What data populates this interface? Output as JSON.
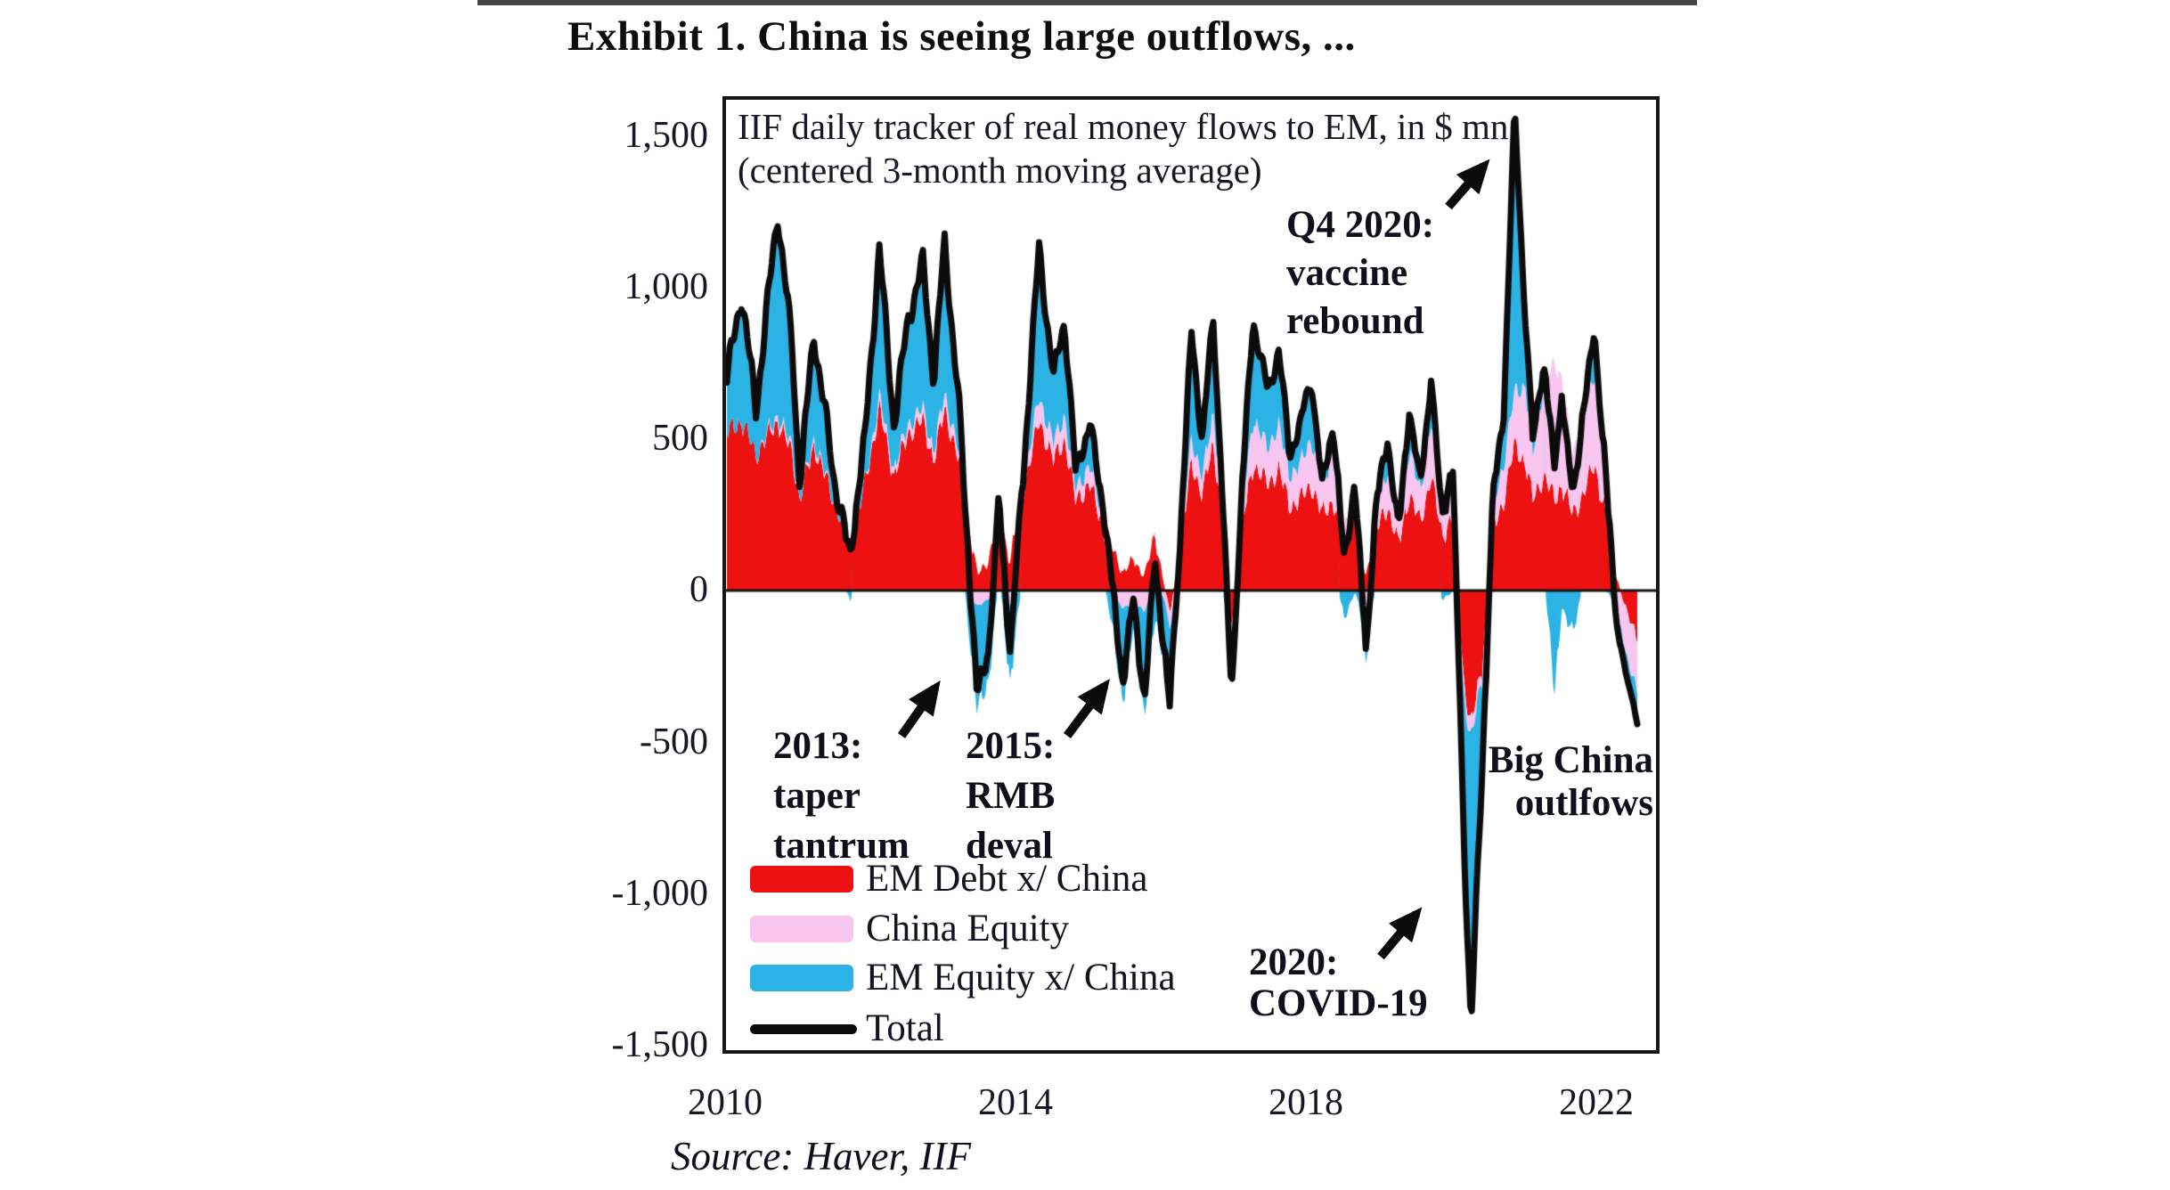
{
  "page": {
    "top_bar_color": "#454545",
    "background": "#ffffff",
    "frame_color": "#161616"
  },
  "title": "Exhibit 1. China is seeing large outflows, ...",
  "chart": {
    "note_line1": "IIF daily tracker of real money flows to EM, in $ mn",
    "note_line2": "(centered 3-month moving average)",
    "y_ticks": [
      "1,500",
      "1,000",
      "500",
      "0",
      "-500",
      "-1,000",
      "-1,500"
    ],
    "x_ticks": [
      "2010",
      "2014",
      "2018",
      "2022"
    ],
    "annotations": {
      "taper": {
        "lines": [
          "2013:",
          "taper",
          "tantrum"
        ]
      },
      "rmb": {
        "lines": [
          "2015:",
          "RMB",
          "deval"
        ]
      },
      "vaccine": {
        "lines": [
          "Q4 2020:",
          "vaccine",
          "rebound"
        ]
      },
      "covid": {
        "lines": [
          "2020:",
          "COVID-19"
        ]
      },
      "bigchina": {
        "lines": [
          "Big China",
          "outlfows"
        ]
      }
    }
  },
  "source": "Source: Haver, IIF",
  "chart_data": {
    "type": "area",
    "stacked": true,
    "title": "IIF daily tracker of real money flows to EM, in $ mn (centered 3-month moving average)",
    "ylabel": "$ mn",
    "ylim": [
      -1500,
      1620
    ],
    "xlim": [
      2010,
      2022.85
    ],
    "grid": false,
    "legend_position": "inside-bottom-left",
    "x": [
      2010.0,
      2010.2,
      2010.4,
      2010.7,
      2010.9,
      2011.0,
      2011.2,
      2011.5,
      2011.7,
      2011.9,
      2012.1,
      2012.3,
      2012.5,
      2012.7,
      2012.85,
      2013.0,
      2013.2,
      2013.45,
      2013.6,
      2013.75,
      2013.9,
      2014.1,
      2014.3,
      2014.5,
      2014.65,
      2014.8,
      2015.0,
      2015.2,
      2015.45,
      2015.6,
      2015.75,
      2015.9,
      2016.1,
      2016.25,
      2016.4,
      2016.55,
      2016.7,
      2016.85,
      2016.95,
      2017.1,
      2017.25,
      2017.45,
      2017.6,
      2017.75,
      2017.9,
      2018.05,
      2018.2,
      2018.35,
      2018.5,
      2018.65,
      2018.8,
      2018.95,
      2019.1,
      2019.25,
      2019.4,
      2019.55,
      2019.7,
      2019.85,
      2020.0,
      2020.15,
      2020.25,
      2020.4,
      2020.55,
      2020.7,
      2020.85,
      2021.0,
      2021.1,
      2021.25,
      2021.4,
      2021.5,
      2021.65,
      2021.8,
      2021.95,
      2022.1,
      2022.25,
      2022.4,
      2022.55
    ],
    "series": [
      {
        "name": "EM Debt x/ China",
        "color": "#ee1111",
        "noise_amp": 50,
        "values": [
          520,
          560,
          450,
          560,
          450,
          300,
          480,
          280,
          150,
          350,
          600,
          380,
          520,
          560,
          430,
          600,
          420,
          50,
          100,
          250,
          100,
          350,
          560,
          430,
          500,
          300,
          350,
          200,
          60,
          100,
          50,
          180,
          -80,
          150,
          420,
          320,
          480,
          200,
          -120,
          220,
          420,
          350,
          400,
          280,
          300,
          350,
          250,
          300,
          150,
          250,
          50,
          200,
          280,
          150,
          320,
          220,
          380,
          180,
          250,
          -300,
          -450,
          -250,
          200,
          300,
          480,
          420,
          300,
          380,
          300,
          350,
          250,
          320,
          420,
          250,
          50,
          -80,
          -150
        ]
      },
      {
        "name": "China Equity",
        "color": "#f8c6ee",
        "noise_amp": 22,
        "values": [
          0,
          0,
          0,
          20,
          20,
          0,
          20,
          0,
          0,
          0,
          40,
          20,
          30,
          40,
          30,
          50,
          30,
          -50,
          -30,
          20,
          -50,
          30,
          80,
          60,
          80,
          40,
          60,
          30,
          -60,
          -40,
          -70,
          20,
          -60,
          30,
          80,
          60,
          100,
          50,
          -80,
          60,
          150,
          120,
          150,
          100,
          120,
          150,
          100,
          150,
          50,
          100,
          -100,
          80,
          120,
          60,
          150,
          100,
          180,
          100,
          150,
          -50,
          -50,
          -30,
          80,
          120,
          180,
          250,
          150,
          300,
          450,
          350,
          200,
          250,
          300,
          150,
          -100,
          -150,
          -180
        ]
      },
      {
        "name": "EM Equity x/ China",
        "color": "#2bb3e6",
        "noise_amp": 55,
        "values": [
          180,
          420,
          150,
          670,
          330,
          50,
          350,
          50,
          -30,
          150,
          490,
          150,
          350,
          480,
          240,
          500,
          150,
          -350,
          -270,
          30,
          -250,
          70,
          490,
          210,
          320,
          60,
          140,
          20,
          -300,
          -90,
          -340,
          -100,
          -240,
          20,
          350,
          120,
          320,
          -50,
          -150,
          70,
          330,
          180,
          250,
          70,
          130,
          200,
          0,
          100,
          -100,
          0,
          -150,
          20,
          100,
          -10,
          130,
          30,
          140,
          -30,
          0,
          -450,
          -950,
          -320,
          20,
          180,
          920,
          230,
          50,
          70,
          -350,
          -50,
          -150,
          30,
          130,
          0,
          -50,
          -70,
          -100
        ]
      },
      {
        "name": "Total",
        "color": "#0b0b0b",
        "derived": "sum",
        "type": "line"
      }
    ],
    "annotations": [
      {
        "text": "2013: taper tantrum",
        "x": 2013.45,
        "y": -350
      },
      {
        "text": "2015: RMB deval",
        "x": 2015.6,
        "y": -300
      },
      {
        "text": "Q4 2020: vaccine rebound",
        "x": 2020.85,
        "y": 1580
      },
      {
        "text": "2020: COVID-19",
        "x": 2020.25,
        "y": -1450
      },
      {
        "text": "Big China outlfows",
        "x": 2022.4,
        "y": -430
      }
    ]
  }
}
